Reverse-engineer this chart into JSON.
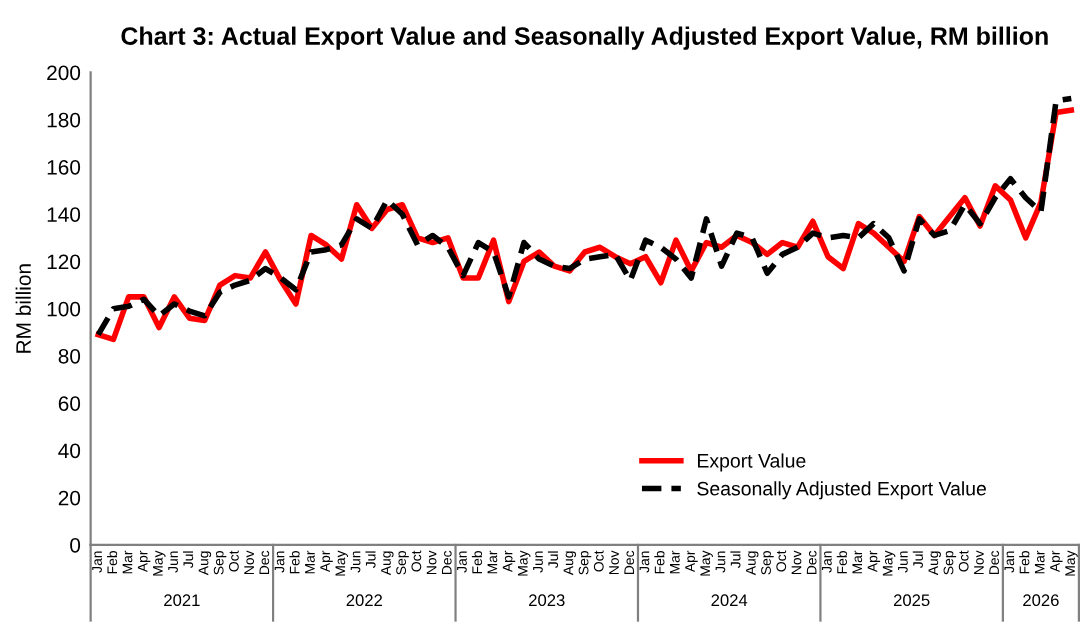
{
  "chart_data": {
    "type": "line",
    "title": "Chart 3: Actual Export Value and Seasonally Adjusted Export Value, RM billion",
    "ylabel": "RM billion",
    "categories": [
      "Jan",
      "Feb",
      "Mar",
      "Apr",
      "May",
      "Jun",
      "Jul",
      "Aug",
      "Sep",
      "Oct",
      "Nov",
      "Dec",
      "Jan",
      "Feb",
      "Mar",
      "Apr",
      "May",
      "Jun",
      "Jul",
      "Aug",
      "Sep",
      "Oct",
      "Nov",
      "Dec",
      "Jan",
      "Feb",
      "Mar",
      "Apr",
      "May",
      "Jun",
      "Jul",
      "Aug",
      "Sep",
      "Oct",
      "Nov",
      "Dec",
      "Jan",
      "Feb",
      "Mar",
      "Apr",
      "May",
      "Jun",
      "Jul",
      "Aug",
      "Sep",
      "Oct",
      "Nov",
      "Dec",
      "Jan",
      "Feb",
      "Mar",
      "Apr",
      "May",
      "Jun",
      "Jul",
      "Aug",
      "Sep",
      "Oct",
      "Nov",
      "Dec",
      "Jan",
      "Feb",
      "Mar",
      "Apr",
      "May"
    ],
    "annotations": [
      "2021",
      "2022",
      "2023",
      "2024",
      "2025",
      "2026"
    ],
    "series": [
      {
        "name": "Export Value",
        "color": "#ff0000",
        "line_style": "solid",
        "values": [
          89,
          87,
          105,
          105,
          92,
          105,
          96,
          95,
          110,
          114,
          113,
          124,
          112,
          102,
          131,
          127,
          121,
          144,
          134,
          142,
          144,
          130,
          128,
          130,
          113,
          113,
          129,
          103,
          120,
          124,
          118,
          116,
          124,
          126,
          122,
          119,
          122,
          111,
          129,
          116,
          128,
          126,
          131,
          128,
          123,
          128,
          126,
          137,
          122,
          117,
          136,
          132,
          126,
          120,
          139,
          131,
          139,
          147,
          135,
          152,
          146,
          130,
          145,
          183,
          184
        ]
      },
      {
        "name": "Seasonally Adjusted Export Value",
        "color": "#000000",
        "line_style": "dashed",
        "values": [
          89,
          100,
          101,
          104,
          97,
          102,
          99,
          97,
          107,
          110,
          112,
          117,
          113,
          108,
          124,
          125,
          127,
          138,
          134,
          146,
          140,
          127,
          131,
          126,
          114,
          128,
          124,
          105,
          128,
          121,
          118,
          117,
          121,
          122,
          123,
          112,
          129,
          126,
          121,
          113,
          138,
          118,
          132,
          130,
          115,
          123,
          126,
          132,
          130,
          131,
          130,
          136,
          130,
          116,
          138,
          131,
          133,
          144,
          136,
          147,
          155,
          147,
          141,
          188,
          189
        ]
      }
    ],
    "ylim": [
      0,
      200
    ],
    "yticks": [
      0,
      20,
      40,
      60,
      80,
      100,
      120,
      140,
      160,
      180,
      200
    ],
    "grid": false,
    "legend": "bottom right",
    "marker": "none"
  }
}
